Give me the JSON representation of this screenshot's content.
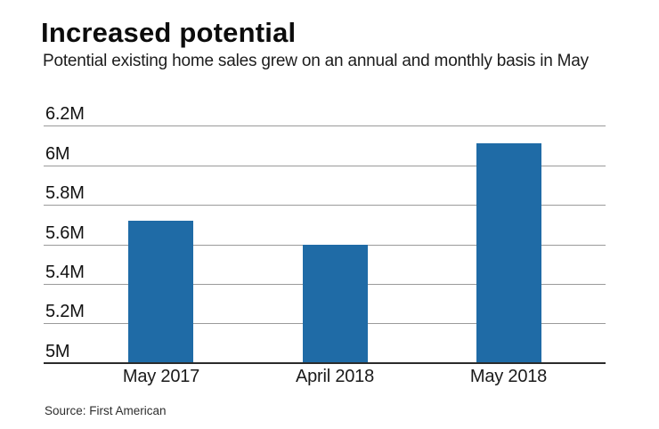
{
  "chart_data": {
    "type": "bar",
    "title": "Increased potential",
    "subtitle": "Potential existing home sales grew on an annual and monthly basis in May",
    "categories": [
      "May 2017",
      "April 2018",
      "May 2018"
    ],
    "values": [
      5.72,
      5.6,
      6.11
    ],
    "unit": "M",
    "xlabel": "",
    "ylabel": "",
    "ylim": [
      5.0,
      6.2
    ],
    "ytick_interval": 0.2,
    "yticks": [
      {
        "value": 6.2,
        "label": "6.2M"
      },
      {
        "value": 6.0,
        "label": "6M"
      },
      {
        "value": 5.8,
        "label": "5.8M"
      },
      {
        "value": 5.6,
        "label": "5.6M"
      },
      {
        "value": 5.4,
        "label": "5.4M"
      },
      {
        "value": 5.2,
        "label": "5.2M"
      },
      {
        "value": 5.0,
        "label": "5M"
      }
    ],
    "grid": "horizontal gridlines on, labels above lines at left",
    "legend": "none",
    "colors": {
      "bar": "#1f6ba6",
      "gridline": "#9a9a9a",
      "baseline": "#2b2b2b",
      "text": "#111111"
    }
  },
  "source": {
    "label": "Source: First American"
  }
}
